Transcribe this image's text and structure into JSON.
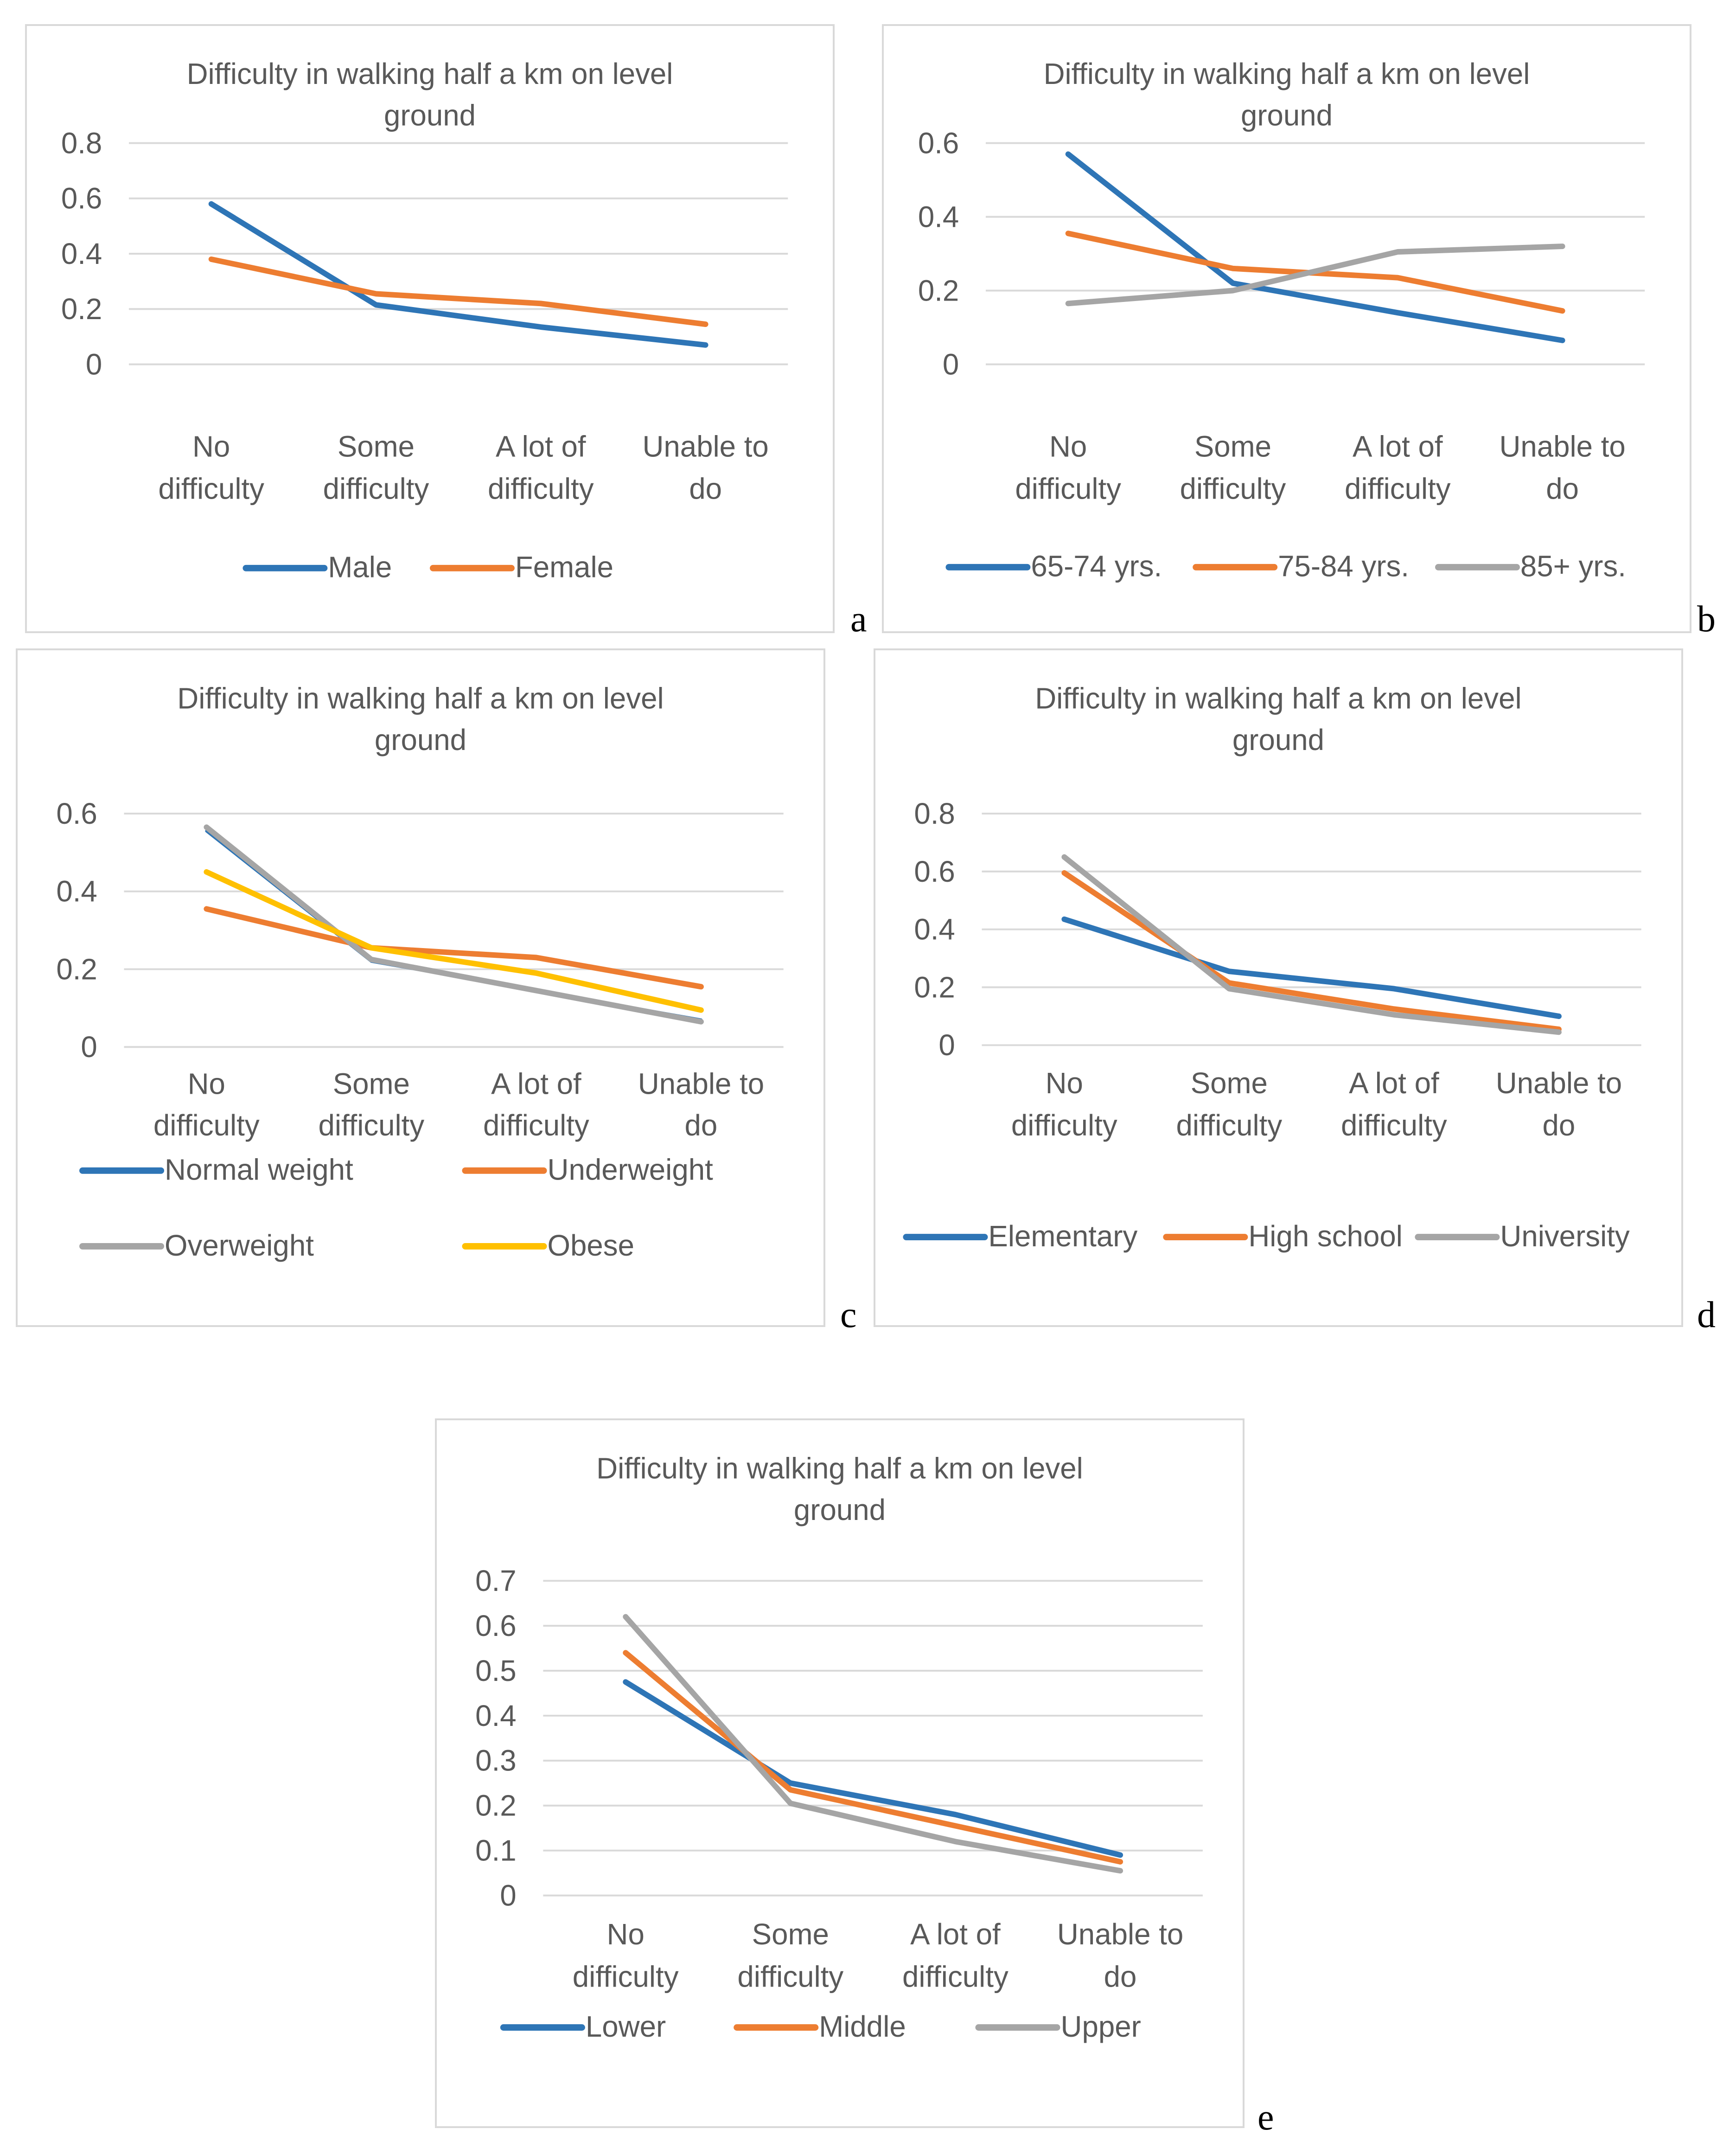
{
  "figure": {
    "panel_letters": [
      "a",
      "b",
      "c",
      "d",
      "e"
    ]
  },
  "colors": {
    "blue": "#2e75b6",
    "orange": "#ed7d31",
    "gray": "#a5a5a5",
    "yellow": "#ffc000"
  },
  "chart_data": [
    {
      "type": "line",
      "panel": "a",
      "title": "Difficulty in walking half a km on level ground",
      "title_lines": [
        "Difficulty in walking half a km on level",
        "ground"
      ],
      "categories": [
        "No difficulty",
        "Some difficulty",
        "A lot of difficulty",
        "Unable to do"
      ],
      "category_lines": [
        [
          "No",
          "difficulty"
        ],
        [
          "Some",
          "difficulty"
        ],
        [
          "A lot of",
          "difficulty"
        ],
        [
          "Unable to",
          "do"
        ]
      ],
      "yticks": [
        "0",
        "0.2",
        "0.4",
        "0.6",
        "0.8"
      ],
      "ylim": [
        0,
        0.8
      ],
      "legend_position": "bottom",
      "series": [
        {
          "name": "Male",
          "color": "#2e75b6",
          "values": [
            0.58,
            0.215,
            0.135,
            0.07
          ]
        },
        {
          "name": "Female",
          "color": "#ed7d31",
          "values": [
            0.38,
            0.255,
            0.22,
            0.145
          ]
        }
      ]
    },
    {
      "type": "line",
      "panel": "b",
      "title": "Difficulty in walking half a km on level ground",
      "title_lines": [
        "Difficulty in walking half a km on level",
        "ground"
      ],
      "categories": [
        "No difficulty",
        "Some difficulty",
        "A lot of difficulty",
        "Unable to do"
      ],
      "category_lines": [
        [
          "No",
          "difficulty"
        ],
        [
          "Some",
          "difficulty"
        ],
        [
          "A lot of",
          "difficulty"
        ],
        [
          "Unable to",
          "do"
        ]
      ],
      "yticks": [
        "0",
        "0.2",
        "0.4",
        "0.6"
      ],
      "ylim": [
        0,
        0.6
      ],
      "legend_position": "bottom",
      "series": [
        {
          "name": "65-74 yrs.",
          "color": "#2e75b6",
          "values": [
            0.57,
            0.22,
            0.14,
            0.065
          ]
        },
        {
          "name": "75-84 yrs.",
          "color": "#ed7d31",
          "values": [
            0.355,
            0.26,
            0.235,
            0.145
          ]
        },
        {
          "name": "85+ yrs.",
          "color": "#a5a5a5",
          "values": [
            0.165,
            0.2,
            0.305,
            0.32
          ]
        }
      ]
    },
    {
      "type": "line",
      "panel": "c",
      "title": "Difficulty in walking half a km on level ground",
      "title_lines": [
        "Difficulty in walking half a km on level",
        "ground"
      ],
      "categories": [
        "No difficulty",
        "Some difficulty",
        "A lot of difficulty",
        "Unable to do"
      ],
      "category_lines": [
        [
          "No",
          "difficulty"
        ],
        [
          "Some",
          "difficulty"
        ],
        [
          "A lot of",
          "difficulty"
        ],
        [
          "Unable to",
          "do"
        ]
      ],
      "yticks": [
        "0",
        "0.2",
        "0.4",
        "0.6"
      ],
      "ylim": [
        0,
        0.6
      ],
      "legend_position": "bottom",
      "series": [
        {
          "name": "Normal weight",
          "color": "#2e75b6",
          "values": [
            0.555,
            0.22,
            0.145,
            0.07
          ]
        },
        {
          "name": "Underweight",
          "color": "#ed7d31",
          "values": [
            0.355,
            0.255,
            0.23,
            0.155
          ]
        },
        {
          "name": "Overweight",
          "color": "#a5a5a5",
          "values": [
            0.565,
            0.225,
            0.145,
            0.065
          ]
        },
        {
          "name": "Obese",
          "color": "#ffc000",
          "values": [
            0.45,
            0.255,
            0.19,
            0.095
          ]
        }
      ]
    },
    {
      "type": "line",
      "panel": "d",
      "title": "Difficulty in walking half a km on level ground",
      "title_lines": [
        "Difficulty in walking half a km on level",
        "ground"
      ],
      "categories": [
        "No difficulty",
        "Some difficulty",
        "A lot of difficulty",
        "Unable to do"
      ],
      "category_lines": [
        [
          "No",
          "difficulty"
        ],
        [
          "Some",
          "difficulty"
        ],
        [
          "A lot of",
          "difficulty"
        ],
        [
          "Unable to",
          "do"
        ]
      ],
      "yticks": [
        "0",
        "0.2",
        "0.4",
        "0.6",
        "0.8"
      ],
      "ylim": [
        0,
        0.8
      ],
      "legend_position": "bottom",
      "series": [
        {
          "name": "Elementary",
          "color": "#2e75b6",
          "values": [
            0.435,
            0.255,
            0.195,
            0.1
          ]
        },
        {
          "name": "High school",
          "color": "#ed7d31",
          "values": [
            0.595,
            0.215,
            0.125,
            0.055
          ]
        },
        {
          "name": "University",
          "color": "#a5a5a5",
          "values": [
            0.65,
            0.195,
            0.105,
            0.045
          ]
        }
      ]
    },
    {
      "type": "line",
      "panel": "e",
      "title": "Difficulty in walking half a km on level ground",
      "title_lines": [
        "Difficulty in walking half a km on level",
        "ground"
      ],
      "categories": [
        "No difficulty",
        "Some difficulty",
        "A lot of difficulty",
        "Unable to do"
      ],
      "category_lines": [
        [
          "No",
          "difficulty"
        ],
        [
          "Some",
          "difficulty"
        ],
        [
          "A lot of",
          "difficulty"
        ],
        [
          "Unable to",
          "do"
        ]
      ],
      "yticks": [
        "0",
        "0.1",
        "0.2",
        "0.3",
        "0.4",
        "0.5",
        "0.6",
        "0.7"
      ],
      "ylim": [
        0,
        0.7
      ],
      "legend_position": "bottom",
      "series": [
        {
          "name": "Lower",
          "color": "#2e75b6",
          "values": [
            0.475,
            0.25,
            0.18,
            0.09
          ]
        },
        {
          "name": "Middle",
          "color": "#ed7d31",
          "values": [
            0.54,
            0.235,
            0.155,
            0.075
          ]
        },
        {
          "name": "Upper",
          "color": "#a5a5a5",
          "values": [
            0.62,
            0.205,
            0.12,
            0.055
          ]
        }
      ]
    }
  ]
}
